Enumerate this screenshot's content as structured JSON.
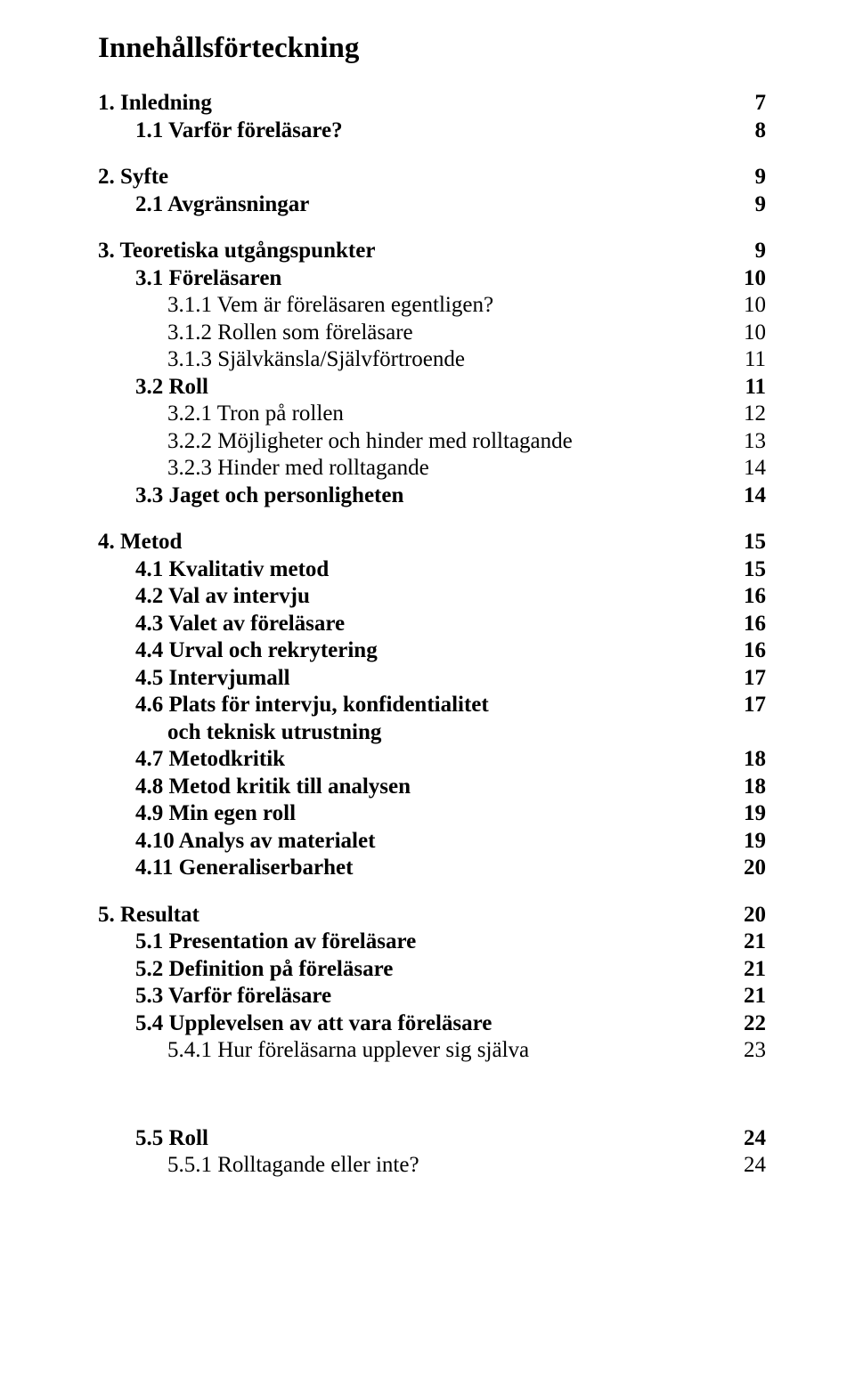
{
  "title": "Innehållsförteckning",
  "entries": [
    {
      "cls": "lvl1",
      "label": "1. Inledning",
      "page": "7"
    },
    {
      "cls": "lvl2",
      "label": "1.1 Varför föreläsare?",
      "page": "8"
    },
    {
      "cls": "lvl1",
      "label": "2. Syfte",
      "page": "9"
    },
    {
      "cls": "lvl2",
      "label": "2.1 Avgränsningar",
      "page": "9"
    },
    {
      "cls": "lvl1",
      "label": "3. Teoretiska utgångspunkter",
      "page": "9"
    },
    {
      "cls": "lvl2",
      "label": "3.1 Föreläsaren",
      "page": "10"
    },
    {
      "cls": "lvl3",
      "label": "3.1.1 Vem är föreläsaren egentligen?",
      "page": "10"
    },
    {
      "cls": "lvl3",
      "label": "3.1.2 Rollen som föreläsare",
      "page": "10"
    },
    {
      "cls": "lvl3",
      "label": "3.1.3 Självkänsla/Självförtroende",
      "page": "11"
    },
    {
      "cls": "lvl2",
      "label": "3.2 Roll",
      "page": "11"
    },
    {
      "cls": "lvl3",
      "label": "3.2.1 Tron på rollen",
      "page": "12"
    },
    {
      "cls": "lvl3",
      "label": "3.2.2 Möjligheter och hinder med rolltagande",
      "page": "13"
    },
    {
      "cls": "lvl3",
      "label": "3.2.3 Hinder med rolltagande",
      "page": "14"
    },
    {
      "cls": "lvl2",
      "label": "3.3 Jaget och personligheten",
      "page": "14"
    },
    {
      "cls": "lvl1",
      "label": "4. Metod",
      "page": "15"
    },
    {
      "cls": "lvl2",
      "label": "4.1 Kvalitativ metod",
      "page": "15"
    },
    {
      "cls": "lvl2",
      "label": "4.2 Val av intervju",
      "page": "16"
    },
    {
      "cls": "lvl2",
      "label": "4.3 Valet av föreläsare",
      "page": "16"
    },
    {
      "cls": "lvl2",
      "label": "4.4 Urval och rekrytering",
      "page": "16"
    },
    {
      "cls": "lvl2",
      "label": "4.5 Intervjumall",
      "page": "17"
    },
    {
      "cls": "lvl2",
      "label": "4.6 Plats för intervju, konfidentialitet",
      "page": "17",
      "continuation": "och teknisk utrustning"
    },
    {
      "cls": "lvl2",
      "label": "4.7 Metodkritik",
      "page": "18"
    },
    {
      "cls": "lvl2",
      "label": "4.8 Metod kritik till analysen",
      "page": "18"
    },
    {
      "cls": "lvl2",
      "label": "4.9 Min egen roll",
      "page": "19"
    },
    {
      "cls": "lvl2",
      "label": "4.10 Analys av materialet",
      "page": "19"
    },
    {
      "cls": "lvl2",
      "label": "4.11 Generaliserbarhet",
      "page": "20"
    },
    {
      "cls": "lvl1 mid-space",
      "label": "5. Resultat",
      "page": "20"
    },
    {
      "cls": "lvl2",
      "label": "5.1 Presentation av föreläsare",
      "page": "21"
    },
    {
      "cls": "lvl2",
      "label": "5.2 Definition på föreläsare",
      "page": "21"
    },
    {
      "cls": "lvl2",
      "label": "5.3 Varför föreläsare",
      "page": "21"
    },
    {
      "cls": "lvl2",
      "label": "5.4 Upplevelsen av att vara föreläsare",
      "page": "22"
    },
    {
      "cls": "lvl3",
      "label": "5.4.1 Hur föreläsarna upplever sig själva",
      "page": "23"
    },
    {
      "cls": "lvl2 big-space",
      "label": "5.5 Roll",
      "page": "24"
    },
    {
      "cls": "lvl3",
      "label": "5.5.1 Rolltagande eller inte?",
      "page": "24"
    }
  ]
}
